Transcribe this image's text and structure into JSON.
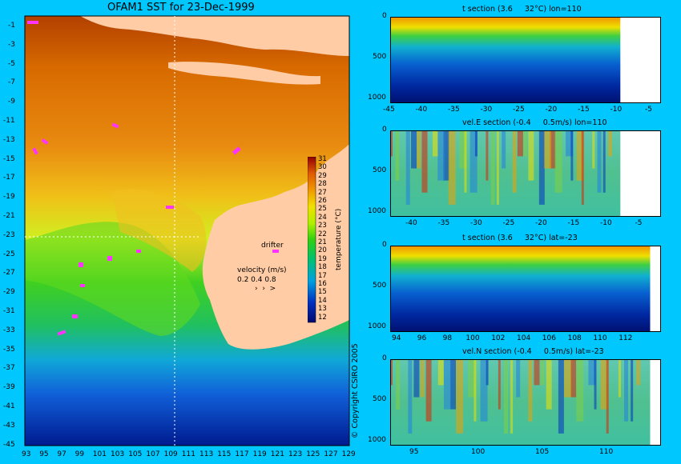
{
  "map": {
    "title": "OFAM1 SST for 23-Dec-1999",
    "x_ticks": [
      "93",
      "95",
      "97",
      "99",
      "101",
      "103",
      "105",
      "107",
      "109",
      "111",
      "113",
      "115",
      "117",
      "119",
      "121",
      "123",
      "125",
      "127",
      "129"
    ],
    "y_ticks": [
      "-1",
      "-3",
      "-5",
      "-7",
      "-9",
      "-11",
      "-13",
      "-15",
      "-17",
      "-19",
      "-21",
      "-23",
      "-25",
      "-27",
      "-29",
      "-31",
      "-33",
      "-35",
      "-37",
      "-39",
      "-41",
      "-43",
      "-45"
    ],
    "colorbar_ticks": [
      "31",
      "30",
      "29",
      "28",
      "27",
      "26",
      "25",
      "24",
      "23",
      "22",
      "21",
      "20",
      "19",
      "18",
      "17",
      "16",
      "15",
      "14",
      "13",
      "12"
    ],
    "colorbar_label": "temperature (°C)",
    "drifter_label": "drifter",
    "velocity_label": "velocity (m/s)",
    "velocity_scale": "0.2 0.4 0.8",
    "colors": {
      "land": "#ffcca5",
      "background": "#00c8ff",
      "drifter": "#ff33ff"
    }
  },
  "panels": [
    {
      "title": "t section (3.6     32°C) lon=110",
      "x_ticks": [
        "-45",
        "-40",
        "-35",
        "-30",
        "-25",
        "-20",
        "-15",
        "-10",
        "-5"
      ],
      "y_ticks": [
        "0",
        "500",
        "1000"
      ]
    },
    {
      "title": "vel.E section (-0.4     0.5m/s) lon=110",
      "x_ticks": [
        "-40",
        "-35",
        "-30",
        "-25",
        "-20",
        "-15",
        "-10",
        "-5"
      ],
      "y_ticks": [
        "0",
        "500",
        "1000"
      ]
    },
    {
      "title": "t section (3.6     32°C) lat=-23",
      "x_ticks": [
        "94",
        "96",
        "98",
        "100",
        "102",
        "104",
        "106",
        "108",
        "110",
        "112"
      ],
      "y_ticks": [
        "0",
        "500",
        "1000"
      ]
    },
    {
      "title": "vel.N section (-0.4     0.5m/s) lat=-23",
      "x_ticks": [
        "95",
        "100",
        "105",
        "110"
      ],
      "y_ticks": [
        "0",
        "500",
        "1000"
      ]
    }
  ],
  "copyright": "© Copyright CSIRO 2005",
  "chart_data": [
    {
      "type": "heatmap",
      "title": "OFAM1 SST for 23-Dec-1999",
      "xlim": [
        93,
        130
      ],
      "ylim": [
        -45,
        -0.5
      ],
      "value_range": [
        12,
        31
      ],
      "color_unit": "temperature (°C)"
    },
    {
      "type": "heatmap",
      "title": "t section (3.6     32°C) lon=110",
      "xlim": [
        -45,
        -2
      ],
      "ylim": [
        1050,
        0
      ],
      "value_range": [
        3.6,
        32
      ]
    },
    {
      "type": "heatmap",
      "title": "vel.E section (-0.4     0.5m/s) lon=110",
      "xlim": [
        -45,
        -2
      ],
      "ylim": [
        1050,
        0
      ],
      "value_range": [
        -0.4,
        0.5
      ]
    },
    {
      "type": "heatmap",
      "title": "t section (3.6     32°C) lat=-23",
      "xlim": [
        93,
        114
      ],
      "ylim": [
        1050,
        0
      ],
      "value_range": [
        3.6,
        32
      ]
    },
    {
      "type": "heatmap",
      "title": "vel.N section (-0.4     0.5m/s) lat=-23",
      "xlim": [
        92.5,
        114
      ],
      "ylim": [
        1050,
        0
      ],
      "value_range": [
        -0.4,
        0.5
      ]
    }
  ]
}
